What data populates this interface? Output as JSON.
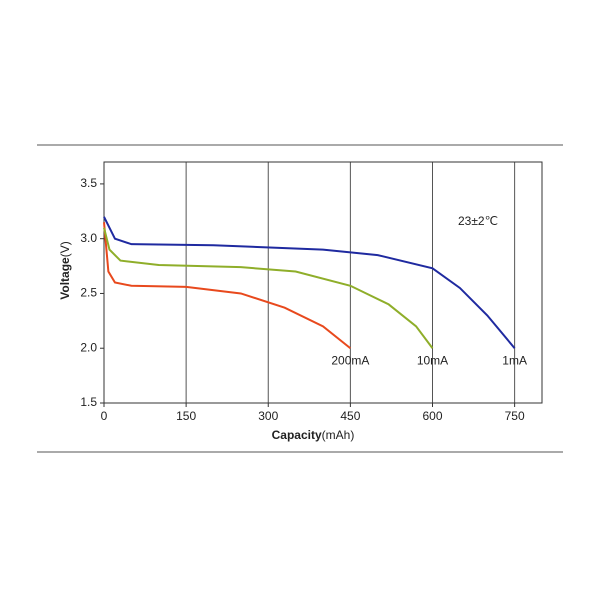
{
  "chart_data": {
    "type": "line",
    "x_label": "Capacity",
    "x_unit": "(mAh)",
    "y_label": "Voltage",
    "y_unit": "(V)",
    "annotation": "23±2℃",
    "xlim": [
      0,
      800
    ],
    "xticks": [
      0,
      150,
      300,
      450,
      600,
      750
    ],
    "ylim": [
      1.5,
      3.7
    ],
    "yticks": [
      1.5,
      {
        "value": 2,
        "label": "2.0"
      },
      2.5,
      {
        "value": 3,
        "label": "3.0"
      },
      3.5
    ],
    "grid": true,
    "series": [
      {
        "name": "200mA",
        "color": "#e8491d",
        "x": [
          0,
          8,
          20,
          50,
          150,
          250,
          330,
          400,
          450
        ],
        "values": [
          3.15,
          2.7,
          2.6,
          2.57,
          2.56,
          2.5,
          2.37,
          2.2,
          2.0
        ]
      },
      {
        "name": "10mA",
        "color": "#8fae2a",
        "x": [
          0,
          10,
          30,
          100,
          250,
          350,
          450,
          520,
          570,
          600
        ],
        "values": [
          3.1,
          2.9,
          2.8,
          2.76,
          2.74,
          2.7,
          2.57,
          2.4,
          2.2,
          2.0
        ]
      },
      {
        "name": "1mA",
        "color": "#1f2aa0",
        "x": [
          0,
          20,
          50,
          200,
          400,
          500,
          600,
          650,
          700,
          750
        ],
        "values": [
          3.2,
          3.0,
          2.95,
          2.94,
          2.9,
          2.85,
          2.73,
          2.55,
          2.3,
          2.0
        ]
      }
    ]
  }
}
